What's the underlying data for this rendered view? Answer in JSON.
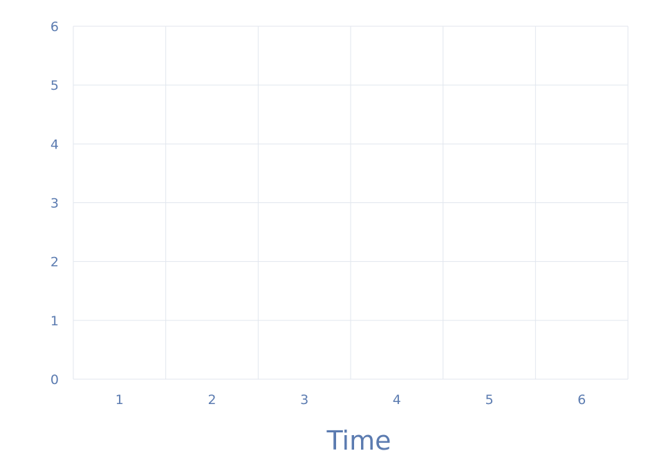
{
  "chart_data": {
    "type": "line",
    "title": "",
    "xlabel": "Time",
    "ylabel": "",
    "categories": [
      "1",
      "2",
      "3",
      "4",
      "5",
      "6"
    ],
    "y_ticks": [
      "0",
      "1",
      "2",
      "3",
      "4",
      "5",
      "6"
    ],
    "ylim": [
      0,
      6
    ],
    "grid": true,
    "series": []
  },
  "colors": {
    "text": "#5b7bb0",
    "grid": "#e1e6ee",
    "background": "#ffffff"
  }
}
